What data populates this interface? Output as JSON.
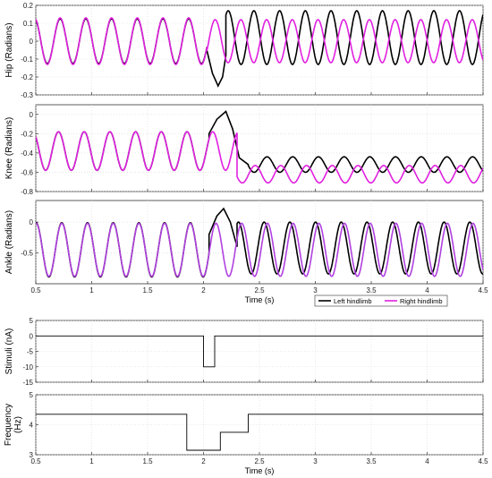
{
  "chart_data": [
    {
      "type": "line",
      "ylabel": "Hip (Radians)",
      "ylim": [
        -0.3,
        0.2
      ],
      "yticks": [
        "0.2",
        "0.1",
        "0",
        "-0.1",
        "-0.2",
        "-0.3"
      ],
      "xlim": [
        0.5,
        4.5
      ],
      "grid": true,
      "series": [
        {
          "color": "#000000",
          "segments": [
            {
              "x0": 0.5,
              "x1": 2.03,
              "freq": 4.35,
              "phase": 0.8,
              "amp": 0.125,
              "offset": 0.0
            },
            {
              "x0": 2.03,
              "x1": 2.2,
              "x": [
                2.03,
                2.08,
                2.13,
                2.17,
                2.2
              ],
              "y": [
                -0.05,
                -0.18,
                -0.25,
                -0.2,
                -0.08
              ]
            },
            {
              "x0": 2.2,
              "x1": 4.5,
              "freq": 4.35,
              "phase": 3.7,
              "amp": 0.15,
              "offset": 0.02
            }
          ]
        },
        {
          "color": "#e020e0",
          "segments": [
            {
              "x0": 0.5,
              "x1": 2.03,
              "freq": 4.35,
              "phase": 0.8,
              "amp": 0.13,
              "offset": 0.0
            },
            {
              "x0": 2.03,
              "x1": 4.5,
              "freq": 4.35,
              "phase": 0.6,
              "amp": 0.12,
              "offset": 0.0
            }
          ]
        }
      ]
    },
    {
      "type": "line",
      "ylabel": "Knee (Radians)",
      "ylim": [
        -0.8,
        0.1
      ],
      "yticks": [
        "0",
        "-0.2",
        "-0.4",
        "-0.6",
        "-0.8"
      ],
      "xlim": [
        0.5,
        4.5
      ],
      "grid": true,
      "series": [
        {
          "color": "#000000",
          "segments": [
            {
              "x0": 0.5,
              "x1": 2.05,
              "freq": 4.35,
              "phase": 1.2,
              "amp": 0.2,
              "offset": -0.38
            },
            {
              "x0": 2.05,
              "x1": 2.4,
              "x": [
                2.05,
                2.12,
                2.2,
                2.26,
                2.32,
                2.4
              ],
              "y": [
                -0.2,
                -0.05,
                0.03,
                -0.15,
                -0.45,
                -0.52
              ]
            },
            {
              "x0": 2.4,
              "x1": 4.5,
              "freq": 4.35,
              "phase": 0.5,
              "amp": 0.08,
              "offset": -0.52
            }
          ]
        },
        {
          "color": "#e020e0",
          "segments": [
            {
              "x0": 0.5,
              "x1": 2.3,
              "freq": 4.35,
              "phase": 1.2,
              "amp": 0.2,
              "offset": -0.38
            },
            {
              "x0": 2.3,
              "x1": 4.5,
              "freq": 4.35,
              "phase": 3.4,
              "amp": 0.09,
              "offset": -0.62
            }
          ]
        }
      ]
    },
    {
      "type": "line",
      "ylabel": "Ankle (Radians)",
      "ylim": [
        -1.0,
        0.35
      ],
      "yticks": [
        "0",
        "-0.5"
      ],
      "xlim": [
        0.5,
        4.5
      ],
      "xticks": [
        "0.5",
        "1",
        "1.5",
        "2",
        "2.5",
        "3",
        "3.5",
        "4",
        "4.5"
      ],
      "xlabel": "Time (s)",
      "legend": {
        "position": "bottom-right",
        "entries": [
          {
            "label": "Left hindlimb",
            "color": "#000000"
          },
          {
            "label": "Right hindlimb",
            "color": "#e020e0"
          }
        ]
      },
      "grid": true,
      "series": [
        {
          "color": "#000000",
          "segments": [
            {
              "x0": 0.5,
              "x1": 2.05,
              "freq": 4.35,
              "phase": 0.4,
              "amp": 0.44,
              "offset": -0.45
            },
            {
              "x0": 2.05,
              "x1": 2.3,
              "x": [
                2.05,
                2.12,
                2.18,
                2.24,
                2.3
              ],
              "y": [
                -0.2,
                0.1,
                0.22,
                0.0,
                -0.4
              ]
            },
            {
              "x0": 2.3,
              "x1": 4.5,
              "freq": 4.35,
              "phase": 1.2,
              "amp": 0.42,
              "offset": -0.42
            }
          ]
        },
        {
          "color": "#b040e0",
          "segments": [
            {
              "x0": 0.5,
              "x1": 4.5,
              "freq": 4.35,
              "phase": 0.4,
              "amp": 0.43,
              "offset": -0.45
            }
          ]
        }
      ]
    },
    {
      "type": "line",
      "ylabel": "Stimuli (nA)",
      "ylim": [
        -15,
        5
      ],
      "yticks": [
        "5",
        "0",
        "-5",
        "-10",
        "-15"
      ],
      "xlim": [
        0.5,
        4.5
      ],
      "grid": true,
      "series": [
        {
          "color": "#000000",
          "step": true,
          "x": [
            0.5,
            2.0,
            2.0,
            2.1,
            2.1,
            4.5
          ],
          "y": [
            0,
            0,
            -10,
            -10,
            0,
            0
          ]
        }
      ]
    },
    {
      "type": "line",
      "ylabel": "Frequency (Hz)",
      "ylim": [
        3,
        5
      ],
      "yticks": [
        "5",
        "4",
        "3"
      ],
      "xlim": [
        0.5,
        4.5
      ],
      "xticks": [
        "0.5",
        "1",
        "1.5",
        "2",
        "2.5",
        "3",
        "3.5",
        "4",
        "4.5"
      ],
      "xlabel": "Time (s)",
      "grid": true,
      "series": [
        {
          "color": "#000000",
          "step": true,
          "x": [
            0.5,
            1.85,
            1.85,
            2.15,
            2.15,
            2.4,
            2.4,
            4.5
          ],
          "y": [
            4.35,
            4.35,
            3.15,
            3.15,
            3.75,
            3.75,
            4.35,
            4.35
          ]
        }
      ]
    }
  ]
}
